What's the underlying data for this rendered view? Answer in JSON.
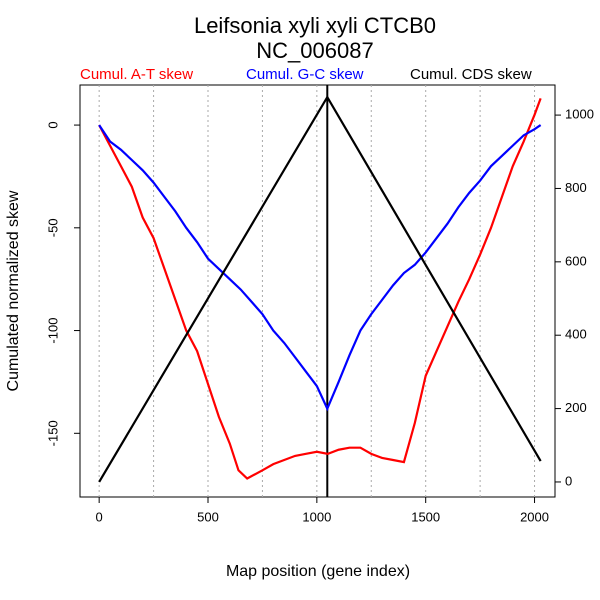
{
  "chart_data": {
    "type": "line",
    "title": "Leifsonia xyli xyli CTCB0",
    "subtitle": "NC_006087",
    "x_label": "Map position (gene index)",
    "y_label": "Cumulated normalized skew",
    "xlim": [
      -88,
      2094
    ],
    "ylim": [
      -181,
      19.5
    ],
    "y2lim": [
      -41,
      1082
    ],
    "xticks": [
      0,
      500,
      1000,
      1500,
      2000
    ],
    "yticks": [
      0,
      -50,
      -100,
      -150
    ],
    "y2ticks": [
      0,
      200,
      400,
      600,
      800,
      1000
    ],
    "xgrid": [
      0,
      250,
      500,
      750,
      1000,
      1250,
      1500,
      1750,
      2000
    ],
    "vline": 1048,
    "series": [
      {
        "name": "Cumul. A-T skew",
        "color": "#ff0000",
        "x": [
          0,
          50,
          100,
          150,
          200,
          250,
          300,
          350,
          400,
          450,
          500,
          550,
          600,
          640,
          680,
          750,
          800,
          850,
          900,
          950,
          1000,
          1050,
          1100,
          1150,
          1200,
          1250,
          1300,
          1350,
          1400,
          1450,
          1500,
          1550,
          1600,
          1650,
          1700,
          1750,
          1800,
          1850,
          1900,
          1950,
          2000,
          2028
        ],
        "values": [
          0,
          -10,
          -20,
          -30,
          -45,
          -55,
          -70,
          -85,
          -100,
          -110,
          -126,
          -142,
          -155,
          -168,
          -172,
          -168,
          -165,
          -163,
          -161,
          -160,
          -159,
          -160,
          -158,
          -157,
          -157,
          -160,
          -162,
          -163,
          -164,
          -145,
          -122,
          -110,
          -98,
          -86,
          -75,
          -63,
          -50,
          -35,
          -20,
          -8,
          5,
          13
        ]
      },
      {
        "name": "Cumul. G-C skew",
        "color": "#0000ff",
        "x": [
          0,
          50,
          100,
          150,
          200,
          250,
          300,
          350,
          400,
          450,
          500,
          550,
          600,
          650,
          700,
          750,
          800,
          850,
          900,
          950,
          1000,
          1048,
          1100,
          1150,
          1200,
          1250,
          1300,
          1350,
          1400,
          1450,
          1500,
          1550,
          1600,
          1650,
          1700,
          1750,
          1800,
          1850,
          1900,
          1950,
          2000,
          2028
        ],
        "values": [
          0,
          -8,
          -12,
          -17,
          -22,
          -28,
          -35,
          -42,
          -50,
          -57,
          -65,
          -70,
          -75,
          -80,
          -86,
          -92,
          -100,
          -106,
          -113,
          -120,
          -127,
          -138,
          -125,
          -112,
          -100,
          -92,
          -85,
          -78,
          -72,
          -68,
          -62,
          -55,
          -48,
          -40,
          -33,
          -27,
          -20,
          -15,
          -10,
          -5,
          -2,
          0
        ]
      },
      {
        "name": "Cumul. CDS skew",
        "color": "#000000",
        "axis": "y2",
        "x": [
          0,
          1048,
          2028
        ],
        "values": [
          0,
          1049,
          57
        ]
      }
    ]
  }
}
